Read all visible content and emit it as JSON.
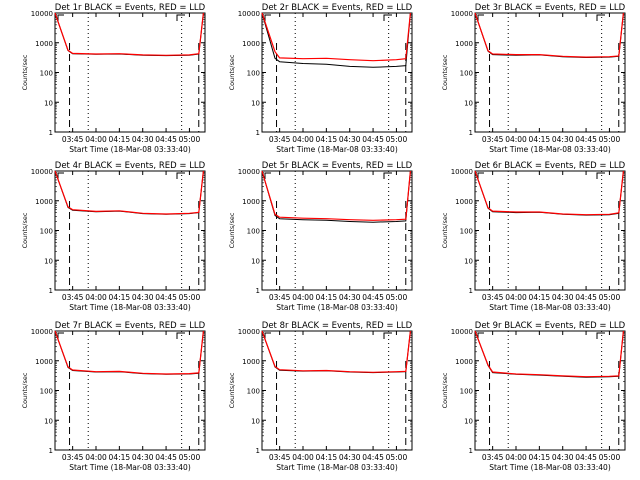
{
  "figure": {
    "ylabel": "Counts/sec",
    "xlabel": "Start Time (18-Mar-08 03:33:40)",
    "ytick_labels": [
      "1",
      "10",
      "100",
      "1000",
      "10000"
    ],
    "xtick_labels": [
      "03:45",
      "04:00",
      "04:15",
      "04:30",
      "04:45",
      "05:00"
    ],
    "series_colors": {
      "events": "#000000",
      "lld": "#ff0000"
    }
  },
  "chart_data": [
    {
      "type": "line",
      "title": "Det 1r BLACK = Events, RED = LLD",
      "y_scale": "log",
      "ylim": [
        1,
        10000
      ],
      "x": [
        "03:33:40",
        "03:42",
        "03:45",
        "04:00",
        "04:15",
        "04:30",
        "04:45",
        "05:00",
        "05:06",
        "05:09"
      ],
      "series": [
        {
          "values": [
            10000,
            550,
            430,
            410,
            420,
            380,
            370,
            380,
            420,
            10000
          ]
        },
        {
          "values": [
            10000,
            560,
            440,
            420,
            430,
            390,
            380,
            390,
            430,
            10000
          ]
        }
      ]
    },
    {
      "type": "line",
      "title": "Det 2r BLACK = Events, RED = LLD",
      "y_scale": "log",
      "ylim": [
        1,
        10000
      ],
      "x": [
        "03:33:40",
        "03:42",
        "03:45",
        "04:00",
        "04:15",
        "04:30",
        "04:45",
        "05:00",
        "05:06",
        "05:09"
      ],
      "series": [
        {
          "values": [
            10000,
            300,
            230,
            200,
            190,
            160,
            150,
            160,
            170,
            10000
          ]
        },
        {
          "values": [
            10000,
            500,
            310,
            290,
            300,
            270,
            250,
            270,
            290,
            10000
          ]
        }
      ]
    },
    {
      "type": "line",
      "title": "Det 3r BLACK = Events, RED = LLD",
      "y_scale": "log",
      "ylim": [
        1,
        10000
      ],
      "x": [
        "03:33:40",
        "03:42",
        "03:45",
        "04:00",
        "04:15",
        "04:30",
        "04:45",
        "05:00",
        "05:06",
        "05:09"
      ],
      "series": [
        {
          "values": [
            10000,
            520,
            400,
            380,
            390,
            340,
            320,
            330,
            350,
            10000
          ]
        },
        {
          "values": [
            10000,
            540,
            420,
            400,
            400,
            350,
            330,
            340,
            360,
            10000
          ]
        }
      ]
    },
    {
      "type": "line",
      "title": "Det 4r BLACK = Events, RED = LLD",
      "y_scale": "log",
      "ylim": [
        1,
        10000
      ],
      "x": [
        "03:33:40",
        "03:42",
        "03:45",
        "04:00",
        "04:15",
        "04:30",
        "04:45",
        "05:00",
        "05:06",
        "05:09"
      ],
      "series": [
        {
          "values": [
            10000,
            600,
            480,
            430,
            450,
            370,
            350,
            370,
            400,
            10000
          ]
        },
        {
          "values": [
            10000,
            620,
            500,
            440,
            460,
            380,
            360,
            380,
            410,
            10000
          ]
        }
      ]
    },
    {
      "type": "line",
      "title": "Det 5r BLACK = Events, RED = LLD",
      "y_scale": "log",
      "ylim": [
        1,
        10000
      ],
      "x": [
        "03:33:40",
        "03:42",
        "03:45",
        "04:00",
        "04:15",
        "04:30",
        "04:45",
        "05:00",
        "05:06",
        "05:09"
      ],
      "series": [
        {
          "values": [
            10000,
            320,
            250,
            230,
            220,
            200,
            190,
            200,
            210,
            10000
          ]
        },
        {
          "values": [
            10000,
            350,
            280,
            260,
            250,
            230,
            220,
            230,
            240,
            10000
          ]
        }
      ]
    },
    {
      "type": "line",
      "title": "Det 6r BLACK = Events, RED = LLD",
      "y_scale": "log",
      "ylim": [
        1,
        10000
      ],
      "x": [
        "03:33:40",
        "03:42",
        "03:45",
        "04:00",
        "04:15",
        "04:30",
        "04:45",
        "05:00",
        "05:06",
        "05:09"
      ],
      "series": [
        {
          "values": [
            10000,
            560,
            430,
            400,
            410,
            350,
            330,
            340,
            380,
            10000
          ]
        },
        {
          "values": [
            10000,
            580,
            450,
            420,
            420,
            360,
            340,
            350,
            390,
            10000
          ]
        }
      ]
    },
    {
      "type": "line",
      "title": "Det 7r BLACK = Events, RED = LLD",
      "y_scale": "log",
      "ylim": [
        1,
        10000
      ],
      "x": [
        "03:33:40",
        "03:42",
        "03:45",
        "04:00",
        "04:15",
        "04:30",
        "04:45",
        "05:00",
        "05:06",
        "05:09"
      ],
      "series": [
        {
          "values": [
            10000,
            600,
            470,
            420,
            430,
            370,
            350,
            360,
            380,
            10000
          ]
        },
        {
          "values": [
            10000,
            620,
            490,
            430,
            440,
            380,
            360,
            370,
            390,
            10000
          ]
        }
      ]
    },
    {
      "type": "line",
      "title": "Det 8r BLACK = Events, RED = LLD",
      "y_scale": "log",
      "ylim": [
        1,
        10000
      ],
      "x": [
        "03:33:40",
        "03:42",
        "03:45",
        "04:00",
        "04:15",
        "04:30",
        "04:45",
        "05:00",
        "05:06",
        "05:09"
      ],
      "series": [
        {
          "values": [
            10000,
            620,
            480,
            450,
            460,
            420,
            400,
            420,
            430,
            10000
          ]
        },
        {
          "values": [
            10000,
            640,
            500,
            460,
            470,
            430,
            410,
            430,
            440,
            10000
          ]
        }
      ]
    },
    {
      "type": "line",
      "title": "Det 9r BLACK = Events, RED = LLD",
      "y_scale": "log",
      "ylim": [
        1,
        10000
      ],
      "x": [
        "03:33:40",
        "03:42",
        "03:45",
        "04:00",
        "04:15",
        "04:30",
        "04:45",
        "05:00",
        "05:06",
        "05:09"
      ],
      "series": [
        {
          "values": [
            10000,
            700,
            400,
            350,
            330,
            300,
            280,
            290,
            300,
            10000
          ]
        },
        {
          "values": [
            10000,
            720,
            420,
            360,
            340,
            310,
            290,
            300,
            310,
            10000
          ]
        }
      ]
    }
  ]
}
